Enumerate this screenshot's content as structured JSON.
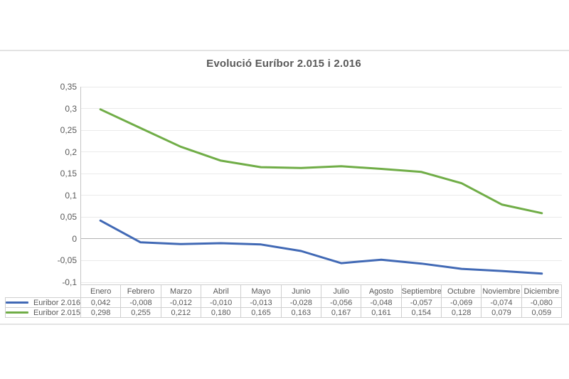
{
  "chart_data": {
    "type": "line",
    "title": "Evolució Euríbor 2.015 i 2.016",
    "categories": [
      "Enero",
      "Febrero",
      "Marzo",
      "Abril",
      "Mayo",
      "Junio",
      "Julio",
      "Agosto",
      "Septiembre",
      "Octubre",
      "Noviembre",
      "Diciembre"
    ],
    "series": [
      {
        "name": "Euribor 2.016",
        "color": "#4169b5",
        "values": [
          0.042,
          -0.008,
          -0.012,
          -0.01,
          -0.013,
          -0.028,
          -0.056,
          -0.048,
          -0.057,
          -0.069,
          -0.074,
          -0.08
        ],
        "display_values": [
          "0,042",
          "-0,008",
          "-0,012",
          "-0,010",
          "-0,013",
          "-0,028",
          "-0,056",
          "-0,048",
          "-0,057",
          "-0,069",
          "-0,074",
          "-0,080"
        ]
      },
      {
        "name": "Euribor 2.015",
        "color": "#70ad47",
        "values": [
          0.298,
          0.255,
          0.212,
          0.18,
          0.165,
          0.163,
          0.167,
          0.161,
          0.154,
          0.128,
          0.079,
          0.059
        ],
        "display_values": [
          "0,298",
          "0,255",
          "0,212",
          "0,180",
          "0,165",
          "0,163",
          "0,167",
          "0,161",
          "0,154",
          "0,128",
          "0,079",
          "0,059"
        ]
      }
    ],
    "ylim": [
      -0.1,
      0.35
    ],
    "ytick_step": 0.05,
    "ytick_labels": [
      "0,35",
      "0,3",
      "0,25",
      "0,2",
      "0,15",
      "0,1",
      "0,05",
      "0",
      "-0,05",
      "-0,1"
    ],
    "grid": true,
    "legend_position": "table-left",
    "xlabel": "",
    "ylabel": ""
  },
  "colors": {
    "background": "#ffffff",
    "title_text": "#595959",
    "axis_text": "#595959",
    "table_text": "#595959",
    "gridline": "#eaeaea",
    "zero_line": "#b3b3b3",
    "axis_line": "#c6c6c6",
    "table_border": "#cfcfcf",
    "divider": "#e3e3e3"
  }
}
